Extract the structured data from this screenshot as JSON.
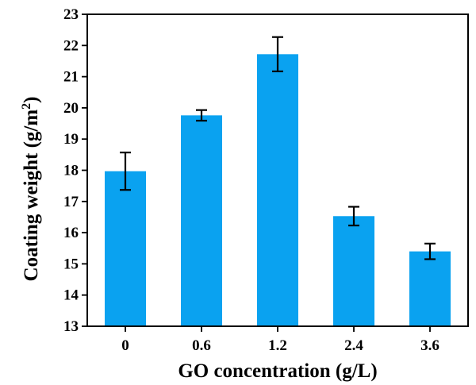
{
  "chart_data": {
    "type": "bar",
    "title": "",
    "xlabel": "GO concentration (g/L)",
    "ylabel_main": "Coating weight (g/m",
    "ylabel_sup": "2",
    "ylabel_tail": ")",
    "categories": [
      "0",
      "0.6",
      "1.2",
      "2.4",
      "3.6"
    ],
    "values": [
      17.97,
      19.76,
      21.72,
      16.53,
      15.4
    ],
    "errors": [
      0.6,
      0.17,
      0.55,
      0.3,
      0.25
    ],
    "ylim": [
      13,
      23
    ],
    "yticks": [
      "13",
      "14",
      "15",
      "16",
      "17",
      "18",
      "19",
      "20",
      "21",
      "22",
      "23"
    ],
    "grid": false,
    "bar_color": "#0aa2f0",
    "error_bar_color": "#000000"
  }
}
